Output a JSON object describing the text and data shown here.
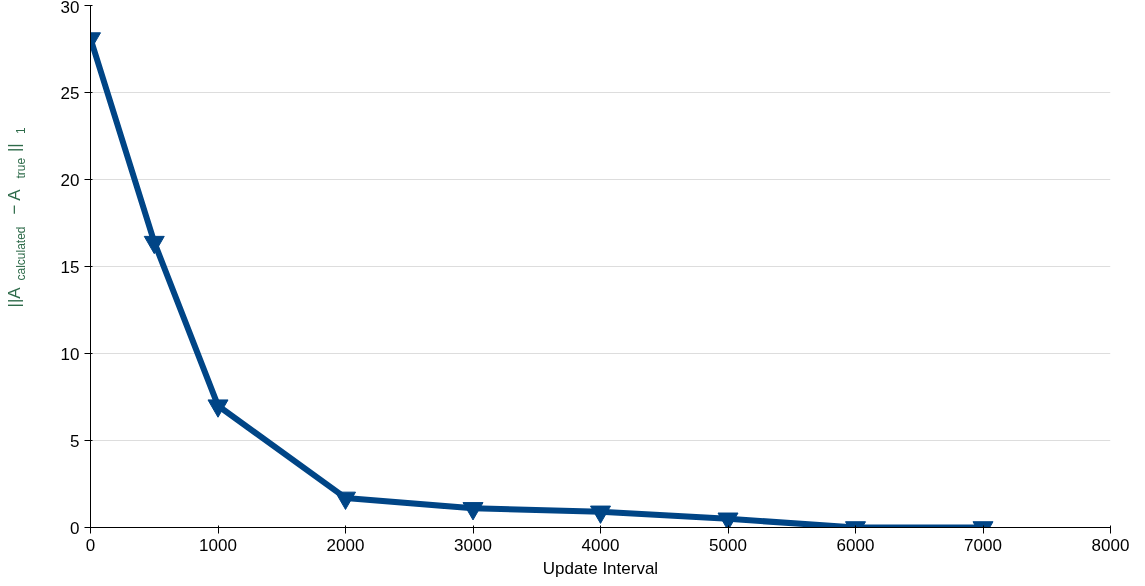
{
  "chart_data": {
    "type": "line",
    "xlabel": "Update Interval",
    "ylabel": "||A$_{calculated}$ − A$_{true}$||$_{1}$",
    "x": [
      0,
      500,
      1000,
      2000,
      3000,
      4000,
      5000,
      6000,
      7000
    ],
    "series": [
      {
        "color": "#004586",
        "values": [
          28.1,
          16.4,
          7.0,
          1.7,
          1.1,
          0.9,
          0.5,
          0.0,
          0.0
        ]
      }
    ],
    "xlim": [
      0,
      8000
    ],
    "xticks": [
      0,
      1000,
      2000,
      3000,
      4000,
      5000,
      6000,
      7000,
      8000
    ],
    "ylim": [
      0,
      30
    ],
    "yticks": [
      0,
      5,
      10,
      15,
      20,
      25,
      30
    ],
    "grid": "y",
    "marker": "triangle",
    "line_style": "solid"
  }
}
